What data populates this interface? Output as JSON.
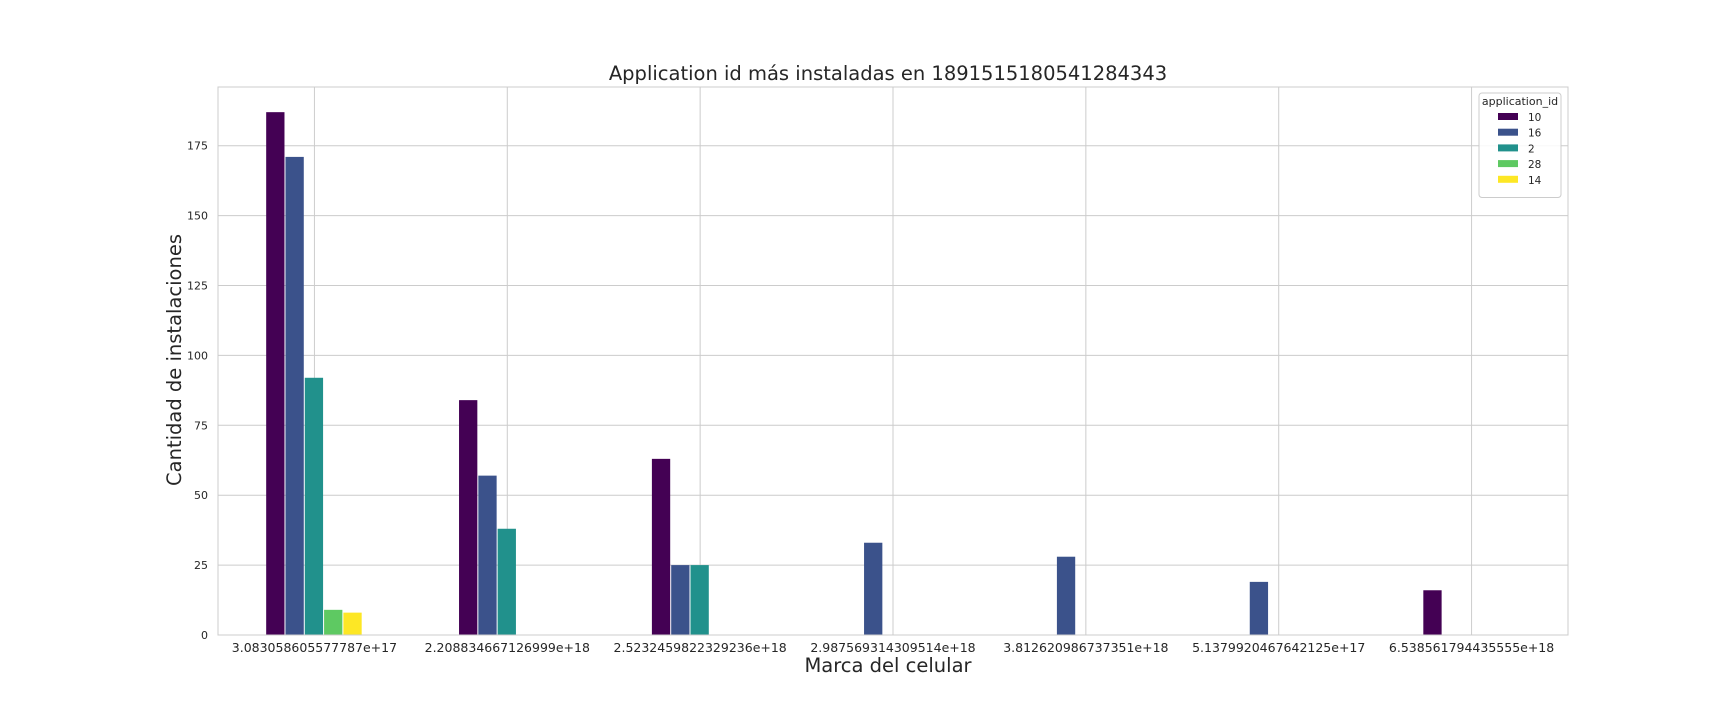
{
  "chart_data": {
    "type": "bar",
    "title": "Application id más instaladas en 1891515180541284343",
    "xlabel": "Marca del celular",
    "ylabel": "Cantidad de instalaciones",
    "categories": [
      "3.083058605577787e+17",
      "2.208834667126999e+18",
      "2.5232459822329236e+18",
      "2.987569314309514e+18",
      "3.812620986737351e+18",
      "5.137992046764212 5e+17",
      "6.538561794435555e+18"
    ],
    "series": [
      {
        "name": "10",
        "color": "#440154",
        "values": [
          187,
          84,
          63,
          null,
          null,
          null,
          16
        ]
      },
      {
        "name": "16",
        "color": "#3b528b",
        "values": [
          171,
          57,
          25,
          33,
          28,
          19,
          null
        ]
      },
      {
        "name": "2",
        "color": "#21918c",
        "values": [
          92,
          38,
          25,
          null,
          null,
          null,
          null
        ]
      },
      {
        "name": "28",
        "color": "#5ec962",
        "values": [
          9,
          null,
          null,
          null,
          null,
          null,
          null
        ]
      },
      {
        "name": "14",
        "color": "#fde725",
        "values": [
          8,
          null,
          null,
          null,
          null,
          null,
          null
        ]
      }
    ],
    "yticks": [
      0,
      25,
      50,
      75,
      100,
      125,
      150,
      175
    ],
    "ylim": [
      0,
      196
    ],
    "grid": true,
    "legend": {
      "title": "application_id",
      "placement": "top-right"
    }
  }
}
